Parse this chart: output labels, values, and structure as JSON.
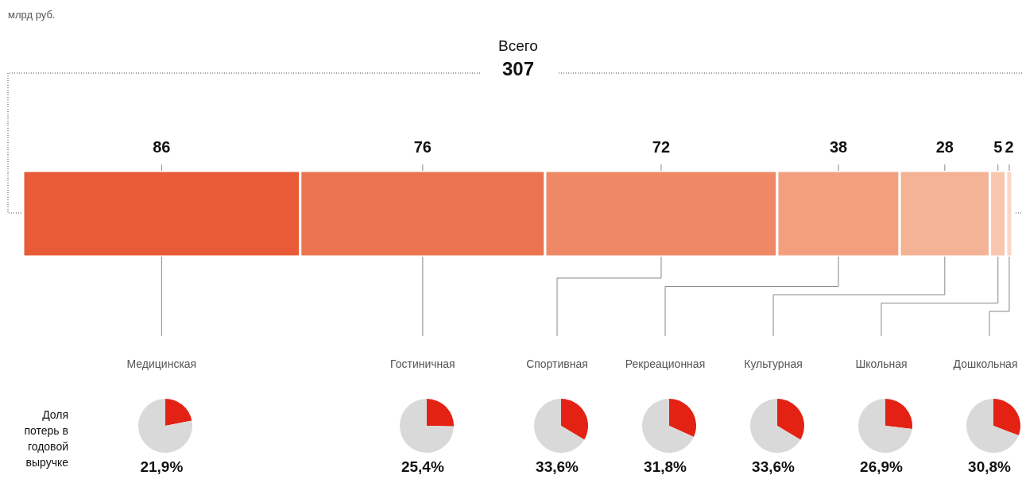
{
  "chart_data": [
    {
      "type": "bar",
      "orientation": "horizontal",
      "stacked": true,
      "categories": [
        null
      ],
      "data_labels": true,
      "annotations": [
        "млрд руб.",
        "Всего",
        "307"
      ],
      "series": [
        {
          "color": "#e95a36",
          "values": [
            86
          ]
        },
        {
          "color": "#ec7350",
          "values": [
            76
          ]
        },
        {
          "color": "#ef8864",
          "values": [
            72
          ]
        },
        {
          "color": "#f39f7e",
          "values": [
            38
          ]
        },
        {
          "color": "#f5b396",
          "values": [
            28
          ]
        },
        {
          "color": "#f8c6ae",
          "values": [
            5
          ]
        },
        {
          "color": "#fad6c6",
          "values": [
            2
          ]
        }
      ]
    },
    {
      "type": "pie",
      "title": "Медицинская",
      "subtitle": "21,9%",
      "categories": [
        null,
        null
      ],
      "values": [
        21.9,
        78.1
      ],
      "colors": [
        "#e32213",
        "#d9d9d9"
      ],
      "annotations": [
        "Доля потерь в годовой выручке"
      ]
    },
    {
      "type": "pie",
      "title": "Гостиничная",
      "subtitle": "25,4%",
      "categories": [
        null,
        null
      ],
      "values": [
        25.4,
        74.6
      ],
      "colors": [
        "#e32213",
        "#d9d9d9"
      ]
    },
    {
      "type": "pie",
      "title": "Спортивная",
      "subtitle": "33,6%",
      "categories": [
        null,
        null
      ],
      "values": [
        33.6,
        66.4
      ],
      "colors": [
        "#e32213",
        "#d9d9d9"
      ]
    },
    {
      "type": "pie",
      "title": "Рекреационная",
      "subtitle": "31,8%",
      "categories": [
        null,
        null
      ],
      "values": [
        31.8,
        68.2
      ],
      "colors": [
        "#e32213",
        "#d9d9d9"
      ]
    },
    {
      "type": "pie",
      "title": "Культурная",
      "subtitle": "33,6%",
      "categories": [
        null,
        null
      ],
      "values": [
        33.6,
        66.4
      ],
      "colors": [
        "#e32213",
        "#d9d9d9"
      ]
    },
    {
      "type": "pie",
      "title": "Школьная",
      "subtitle": "26,9%",
      "categories": [
        null,
        null
      ],
      "values": [
        26.9,
        73.1
      ],
      "colors": [
        "#e32213",
        "#d9d9d9"
      ]
    },
    {
      "type": "pie",
      "title": "Дошкольная",
      "subtitle": "30,8%",
      "categories": [
        null,
        null
      ],
      "values": [
        30.8,
        69.2
      ],
      "colors": [
        "#e32213",
        "#d9d9d9"
      ]
    }
  ]
}
